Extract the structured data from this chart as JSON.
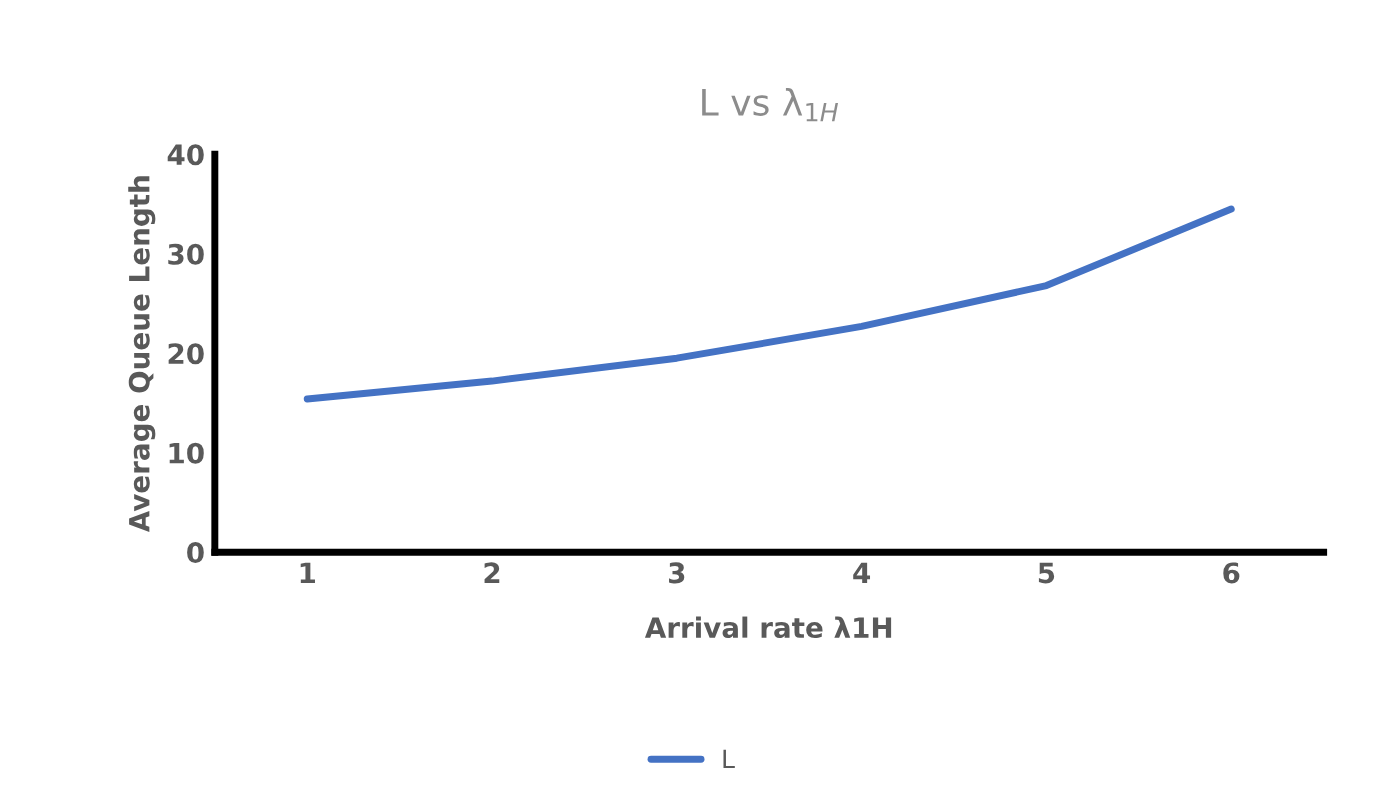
{
  "chart_data": {
    "type": "line",
    "title": "L vs λ$_{1H}$",
    "xlabel": "Arrival rate λ1H",
    "ylabel": "Average Queue Length",
    "categories": [
      "1",
      "2",
      "3",
      "4",
      "5",
      "6"
    ],
    "series": [
      {
        "name": "L",
        "color": "#4472c4",
        "values": [
          15.4,
          17.2,
          19.5,
          22.7,
          26.8,
          34.5
        ]
      }
    ],
    "ylim": [
      0,
      40
    ],
    "yticks": [
      0,
      10,
      20,
      30,
      40
    ],
    "grid": false,
    "legend": "bottom",
    "marker": "none",
    "line_style": "solid"
  }
}
